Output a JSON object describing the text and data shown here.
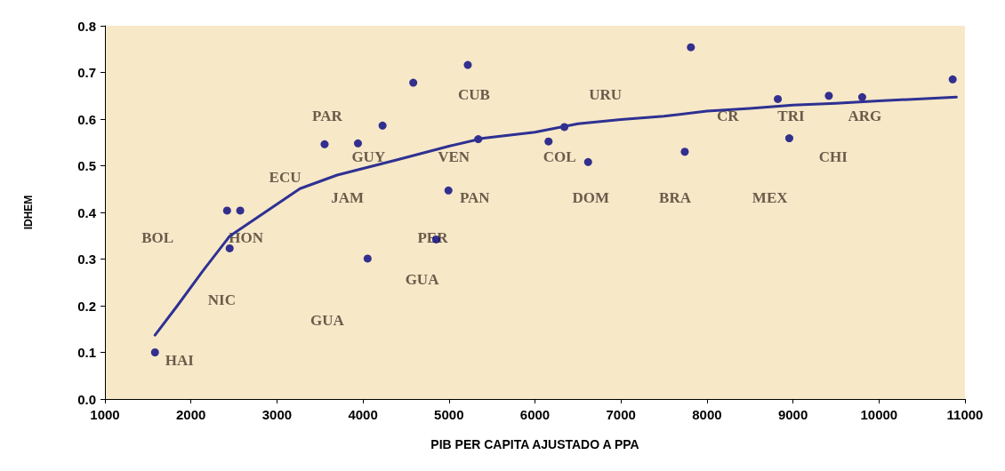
{
  "chart_data": {
    "type": "scatter",
    "xlabel": "PIB PER CAPITA AJUSTADO A PPA",
    "ylabel": "IDHEM",
    "xlim": [
      1000,
      11000
    ],
    "xticks": [
      1000,
      2000,
      3000,
      4000,
      5000,
      6000,
      7000,
      8000,
      9000,
      10000,
      11000
    ],
    "ylim": [
      0,
      0.8
    ],
    "yticks": [
      {
        "value": 0,
        "label": "0.0"
      },
      0.1,
      0.2,
      0.3,
      0.4,
      0.5,
      0.6,
      0.7,
      0.8
    ],
    "grid": false,
    "series": [
      {
        "color": "#000080",
        "marker": "circle",
        "x": [
          1582,
          2420,
          2573,
          2450,
          3554,
          3942,
          4228,
          4054,
          4585,
          4994,
          4851,
          5219,
          5341,
          6158,
          6342,
          6618,
          7742,
          7813,
          8824,
          8957,
          9417,
          9805,
          10857
        ],
        "values": [
          0.1,
          0.404,
          0.404,
          0.323,
          0.546,
          0.548,
          0.586,
          0.301,
          0.678,
          0.447,
          0.342,
          0.716,
          0.557,
          0.552,
          0.583,
          0.508,
          0.53,
          0.754,
          0.643,
          0.559,
          0.65,
          0.647,
          0.685
        ]
      },
      {
        "type": "line",
        "color": "#2e3192",
        "marker": "none",
        "line_style": "solid",
        "x": [
          1582,
          1838,
          2144,
          2450,
          2859,
          3268,
          3700,
          4400,
          5000,
          5400,
          6000,
          6500,
          7000,
          7500,
          8000,
          8500,
          9000,
          9500,
          10000,
          10900
        ],
        "values": [
          0.137,
          0.199,
          0.276,
          0.349,
          0.4,
          0.451,
          0.48,
          0.513,
          0.542,
          0.559,
          0.572,
          0.59,
          0.599,
          0.606,
          0.617,
          0.623,
          0.63,
          0.634,
          0.639,
          0.647
        ]
      }
    ],
    "annotations": [
      "BOL",
      "HON",
      "NIC",
      "GUA",
      "GUA",
      "HAI",
      "ECU",
      "JAM",
      "PAR",
      "GUY",
      "PER",
      "PAN",
      "VEN",
      "CUB",
      "URU",
      "COL",
      "DOM",
      "BRA",
      "CR",
      "TRI",
      "ARG",
      "MEX",
      "CHI"
    ]
  }
}
